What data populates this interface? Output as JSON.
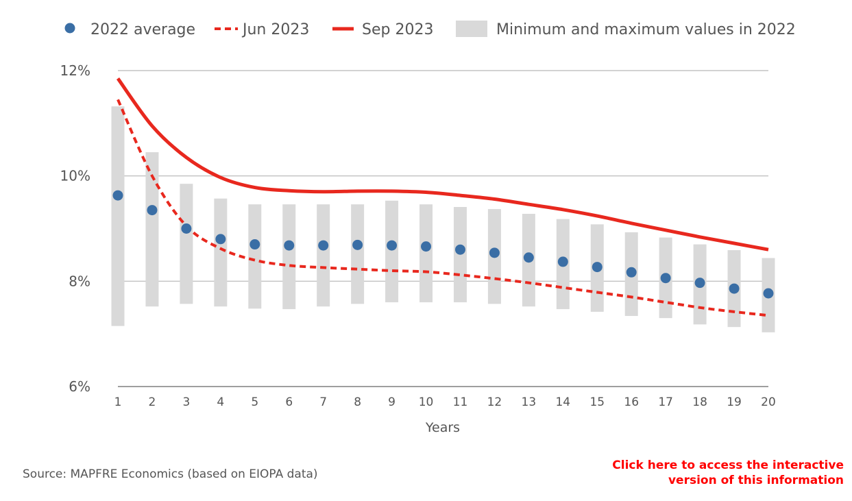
{
  "chart_data": {
    "type": "line",
    "xlabel": "Years",
    "ylabel": "",
    "ylim": [
      6,
      12
    ],
    "y_ticks": [
      "6%",
      "8%",
      "10%",
      "12%"
    ],
    "y_tick_values": [
      6,
      8,
      10,
      12
    ],
    "x": [
      1,
      2,
      3,
      4,
      5,
      6,
      7,
      8,
      9,
      10,
      11,
      12,
      13,
      14,
      15,
      16,
      17,
      18,
      19,
      20
    ],
    "grid": "horizontal",
    "legend_position": "top",
    "range_band": {
      "name": "Minimum and maximum values in 2022",
      "color": "#d9d9d9",
      "min": [
        7.15,
        7.52,
        7.57,
        7.52,
        7.48,
        7.47,
        7.52,
        7.57,
        7.6,
        7.6,
        7.6,
        7.57,
        7.52,
        7.47,
        7.42,
        7.34,
        7.3,
        7.18,
        7.13,
        7.03
      ],
      "max": [
        11.32,
        10.45,
        9.85,
        9.57,
        9.46,
        9.46,
        9.46,
        9.46,
        9.53,
        9.46,
        9.41,
        9.37,
        9.28,
        9.18,
        9.08,
        8.93,
        8.83,
        8.7,
        8.59,
        8.44
      ]
    },
    "series": [
      {
        "name": "2022 average",
        "style": "dot",
        "color": "#3a6ea5",
        "values": [
          9.63,
          9.35,
          9.0,
          8.8,
          8.7,
          8.68,
          8.68,
          8.69,
          8.68,
          8.66,
          8.6,
          8.54,
          8.45,
          8.37,
          8.27,
          8.17,
          8.06,
          7.97,
          7.86,
          7.77
        ]
      },
      {
        "name": "Jun 2023",
        "style": "dashed",
        "color": "#e8281e",
        "values": [
          11.45,
          10.0,
          9.05,
          8.62,
          8.4,
          8.3,
          8.26,
          8.23,
          8.2,
          8.18,
          8.12,
          8.05,
          7.97,
          7.88,
          7.79,
          7.7,
          7.6,
          7.5,
          7.42,
          7.35
        ]
      },
      {
        "name": "Sep 2023",
        "style": "solid",
        "color": "#e8281e",
        "values": [
          11.85,
          10.95,
          10.35,
          9.97,
          9.78,
          9.72,
          9.7,
          9.71,
          9.71,
          9.69,
          9.63,
          9.56,
          9.46,
          9.36,
          9.24,
          9.1,
          8.97,
          8.84,
          8.72,
          8.6
        ]
      }
    ]
  },
  "footer": {
    "source": "Source: MAPFRE Economics (based on EIOPA data)",
    "link_line1": "Click here to access the interactive",
    "link_line2": "version of this information"
  }
}
